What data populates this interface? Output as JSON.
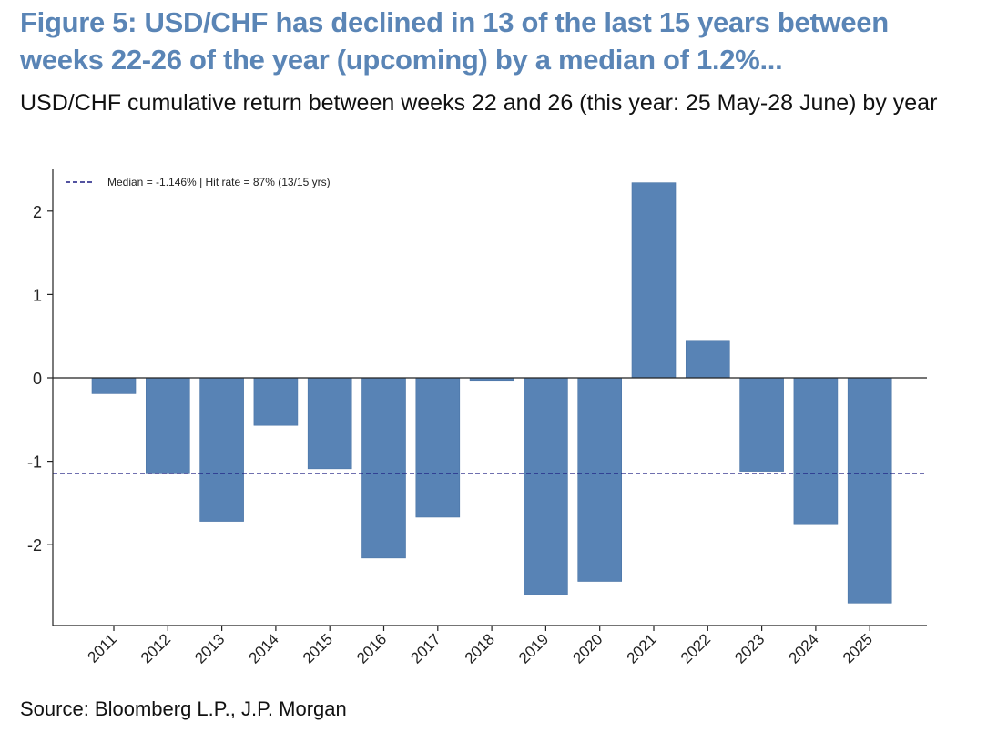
{
  "header": {
    "title": "Figure 5: USD/CHF has declined in 13 of the last 15 years between weeks 22-26 of the year (upcoming) by a median of 1.2%...",
    "subtitle": "USD/CHF cumulative return between weeks 22 and 26 (this year: 25 May-28 June) by year"
  },
  "footer": {
    "source": "Source: Bloomberg L.P., J.P. Morgan"
  },
  "colors": {
    "title": "#5a85b6",
    "bar": "#5883b5",
    "median_line": "#1a1a80"
  },
  "chart_data": {
    "type": "bar",
    "categories": [
      "2011",
      "2012",
      "2013",
      "2014",
      "2015",
      "2016",
      "2017",
      "2018",
      "2019",
      "2020",
      "2021",
      "2022",
      "2023",
      "2024",
      "2025"
    ],
    "values": [
      -0.19,
      -1.15,
      -1.72,
      -0.57,
      -1.09,
      -2.16,
      -1.67,
      -0.03,
      -2.6,
      -2.44,
      2.34,
      0.45,
      -1.12,
      -1.76,
      -2.7
    ],
    "ylim": [
      -2.95,
      2.45
    ],
    "yticks": [
      -2,
      -1,
      0,
      1,
      2
    ],
    "median": -1.146,
    "legend": {
      "label": "Median = -1.146%  |  Hit rate = 87% (13/15 yrs)",
      "position": "top-left"
    },
    "grid": false
  }
}
